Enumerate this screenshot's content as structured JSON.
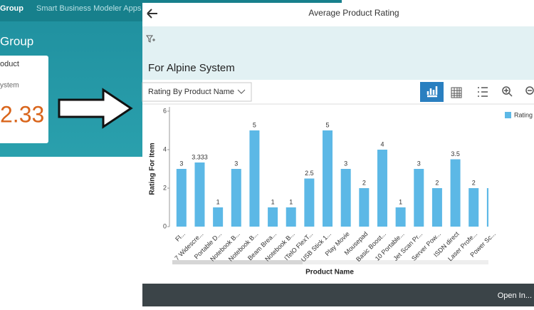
{
  "shell": {
    "group_tab": "Group",
    "apps_tab": "Smart Business Modeler Apps",
    "heading": "Group"
  },
  "tile": {
    "title": "oduct",
    "subtitle": "ystem",
    "kpi": "2.33"
  },
  "panel": {
    "title": "Average Product Rating",
    "subtitle": "For Alpine System",
    "dropdown": "Rating By Product Name",
    "footer_button": "Open In..."
  },
  "chart_data": {
    "type": "bar",
    "x_label": "Product Name",
    "y_label": "Rating For Item",
    "categories": [
      "Fl...",
      "7 Widescre...",
      "Portable D...",
      "Notebook B...",
      "Notebook B...",
      "Beam Brea...",
      "Notebook B...",
      "ITelO FlexT...",
      "USB Stick 1...",
      "Play Movie",
      "Mousepad",
      "Basic Boost...",
      "10 Portable...",
      "Jet Scan Pr...",
      "Server Pow...",
      "ISDN direct",
      "Laser Profe...",
      "Power Sc..."
    ],
    "series": [
      {
        "name": "Rating",
        "color": "#5cb8e6",
        "values": [
          3,
          3.333,
          1,
          3,
          5,
          1,
          1,
          2.5,
          5,
          3,
          2,
          4,
          1,
          3,
          2,
          3.5,
          2,
          2
        ]
      }
    ],
    "ylim": [
      0,
      6
    ],
    "yticks": [
      0,
      2,
      4,
      6
    ],
    "grid": false,
    "legend": "right"
  }
}
